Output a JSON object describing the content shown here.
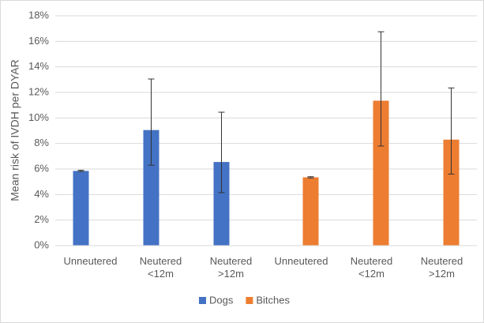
{
  "chart_data": {
    "type": "bar",
    "y_label": "Mean risk of IVDH per DYAR",
    "categories": [
      "Unneutered",
      "Neutered <12m",
      "Neutered >12m",
      "Unneutered",
      "Neutered <12m",
      "Neutered >12m"
    ],
    "series": [
      {
        "name": "Dogs",
        "color": "#4472c4",
        "values": [
          5.85,
          9.05,
          6.55,
          null,
          null,
          null
        ],
        "ci_low": [
          5.8,
          6.3,
          4.15,
          null,
          null,
          null
        ],
        "ci_high": [
          5.9,
          13.05,
          10.45,
          null,
          null,
          null
        ]
      },
      {
        "name": "Bitches",
        "color": "#ed7d31",
        "values": [
          null,
          null,
          null,
          5.35,
          11.35,
          8.3
        ],
        "ci_low": [
          null,
          null,
          null,
          5.3,
          7.8,
          5.6
        ],
        "ci_high": [
          null,
          null,
          null,
          5.4,
          16.75,
          12.35
        ]
      }
    ],
    "ylim": [
      0,
      18
    ],
    "yticks": [
      {
        "value": 0,
        "label": "0%"
      },
      {
        "value": 2,
        "label": "2%"
      },
      {
        "value": 4,
        "label": "4%"
      },
      {
        "value": 6,
        "label": "6%"
      },
      {
        "value": 8,
        "label": "8%"
      },
      {
        "value": 10,
        "label": "10%"
      },
      {
        "value": 12,
        "label": "12%"
      },
      {
        "value": 14,
        "label": "14%"
      },
      {
        "value": 16,
        "label": "16%"
      },
      {
        "value": 18,
        "label": "18%"
      }
    ],
    "grid": true,
    "legend": "bottom"
  }
}
